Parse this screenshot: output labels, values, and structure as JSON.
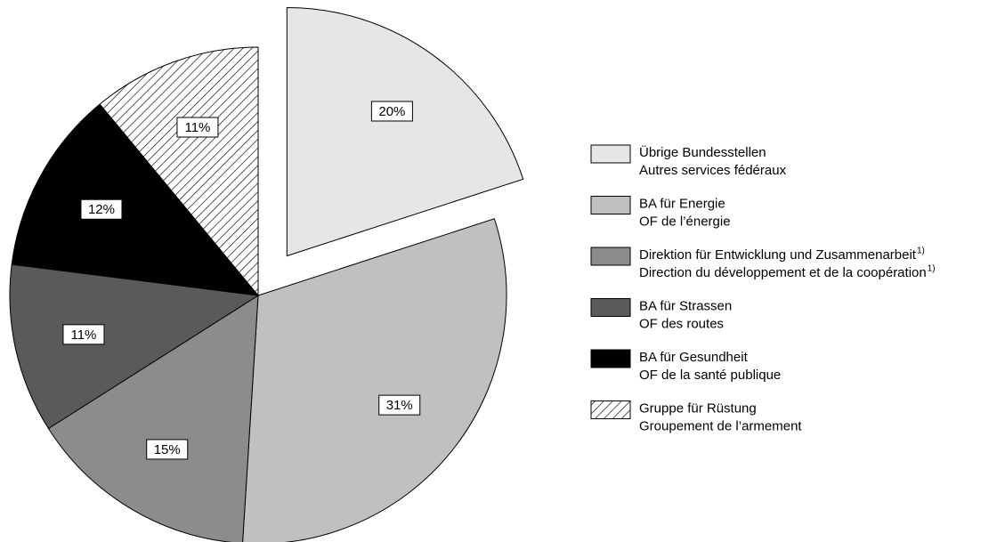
{
  "chart_data": {
    "type": "pie",
    "categories": [
      [
        "Übrige Bundesstellen",
        "Autres services fédéraux"
      ],
      [
        "BA für Energie",
        "OF de l’énergie"
      ],
      [
        "Direktion für Entwicklung und Zusammenarbeit",
        "Direction du développement et de la coopération"
      ],
      [
        "BA für Strassen",
        "OF des routes"
      ],
      [
        "BA für Gesundheit",
        "OF de la santé publique"
      ],
      [
        "Gruppe für Rüstung",
        "Groupement de l’armement"
      ]
    ],
    "category_notes": [
      null,
      null,
      [
        "1)",
        "1)"
      ],
      null,
      null,
      null
    ],
    "values": [
      20,
      31,
      15,
      11,
      12,
      11
    ],
    "value_labels": [
      "20%",
      "31%",
      "15%",
      "11%",
      "12%",
      "11%"
    ],
    "colors": [
      "#e6e6e6",
      "#c0c0c0",
      "#8c8c8c",
      "#5a5a5a",
      "#000000",
      "#ffffff"
    ],
    "hatch": [
      false,
      false,
      false,
      false,
      false,
      true
    ],
    "exploded": [
      true,
      false,
      false,
      false,
      false,
      false
    ]
  }
}
